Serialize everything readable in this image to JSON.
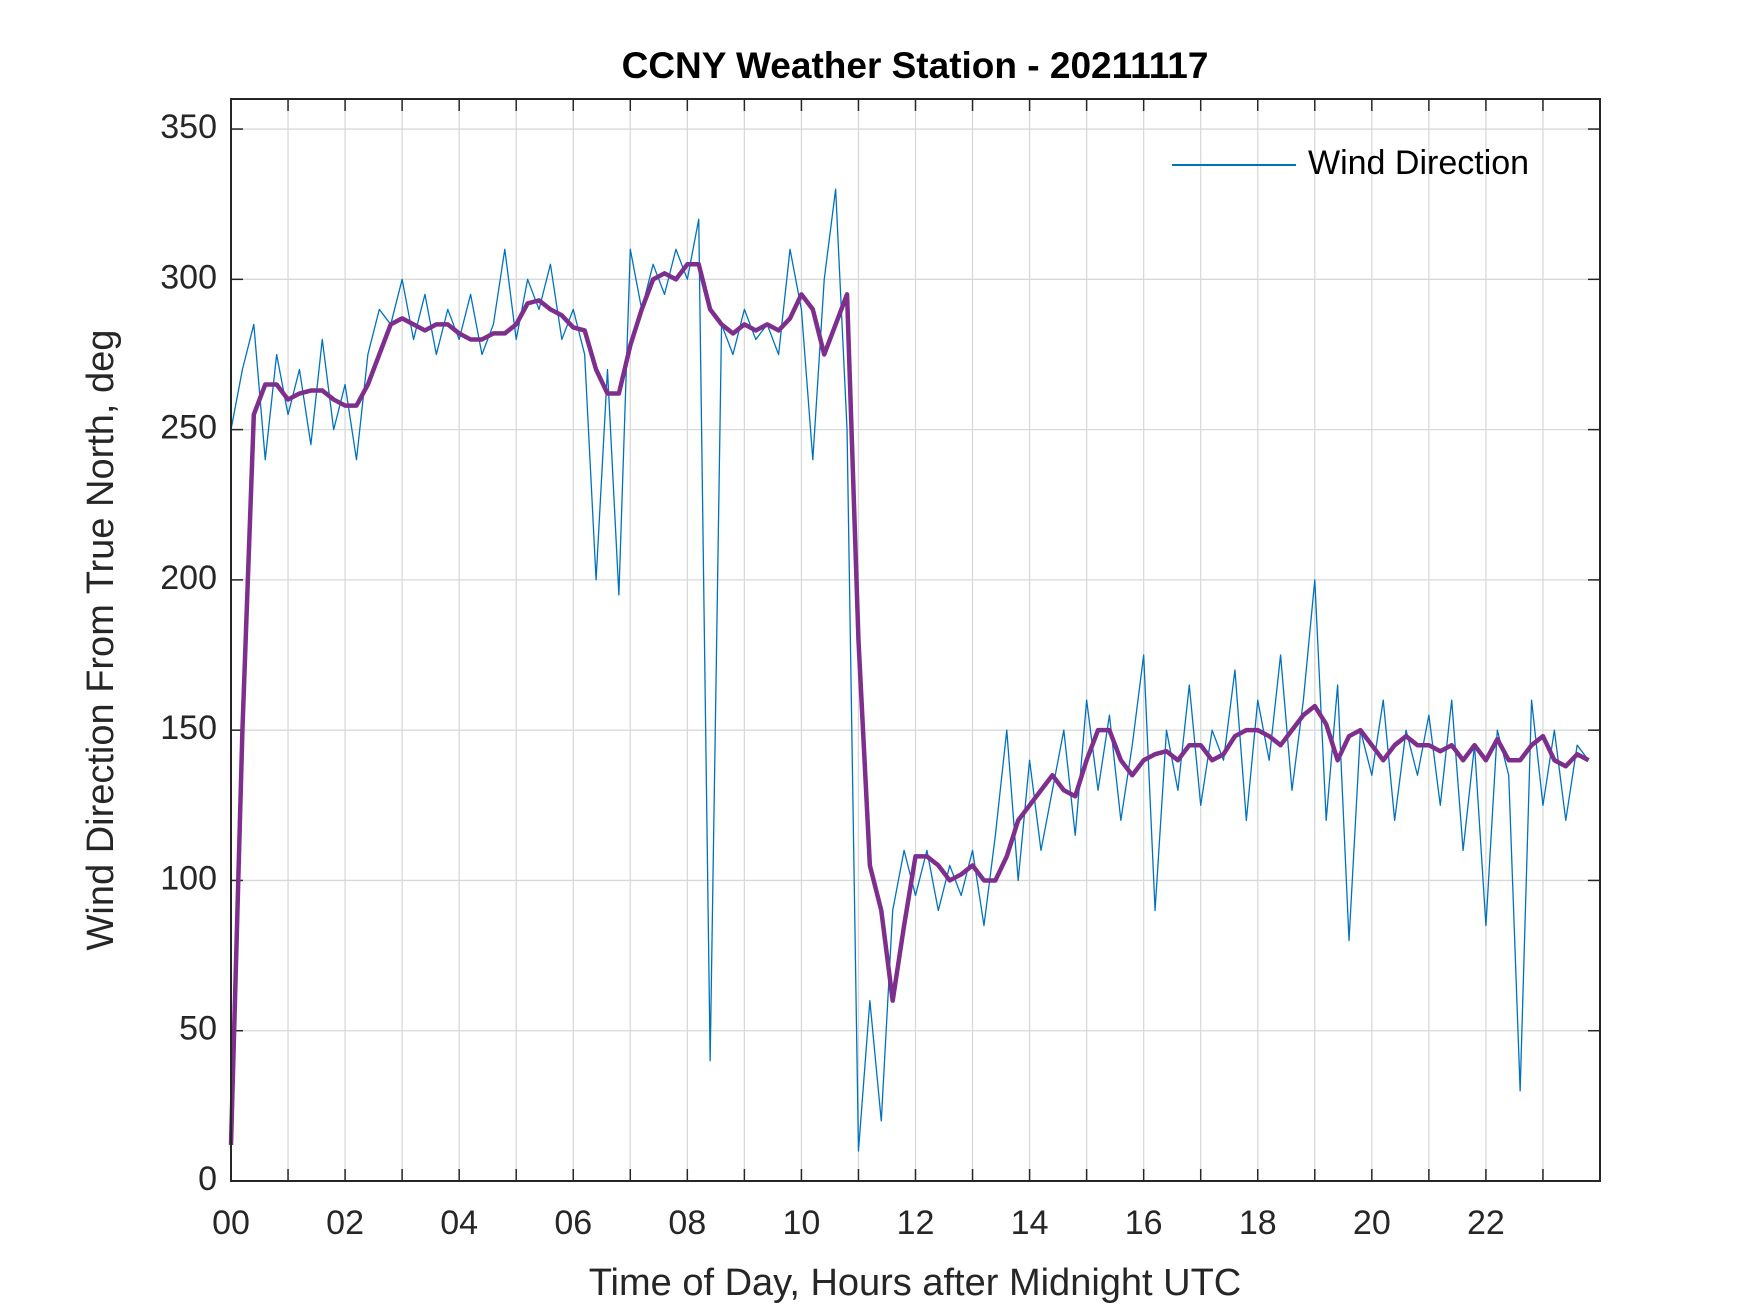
{
  "chart_data": {
    "type": "line",
    "title": "CCNY Weather Station - 20211117",
    "x_label": "Time of Day, Hours after Midnight UTC",
    "y_label": "Wind Direction From True North, deg",
    "x": [
      0,
      0.2,
      0.4,
      0.6,
      0.8,
      1,
      1.2,
      1.4,
      1.6,
      1.8,
      2,
      2.2,
      2.4,
      2.6,
      2.8,
      3,
      3.2,
      3.4,
      3.6,
      3.8,
      4,
      4.2,
      4.4,
      4.6,
      4.8,
      5,
      5.2,
      5.4,
      5.6,
      5.8,
      6,
      6.2,
      6.4,
      6.6,
      6.8,
      7,
      7.2,
      7.4,
      7.6,
      7.8,
      8,
      8.2,
      8.4,
      8.6,
      8.8,
      9,
      9.2,
      9.4,
      9.6,
      9.8,
      10,
      10.2,
      10.4,
      10.6,
      10.8,
      11,
      11.2,
      11.4,
      11.6,
      11.8,
      12,
      12.2,
      12.4,
      12.6,
      12.8,
      13,
      13.2,
      13.4,
      13.6,
      13.8,
      14,
      14.2,
      14.4,
      14.6,
      14.8,
      15,
      15.2,
      15.4,
      15.6,
      15.8,
      16,
      16.2,
      16.4,
      16.6,
      16.8,
      17,
      17.2,
      17.4,
      17.6,
      17.8,
      18,
      18.2,
      18.4,
      18.6,
      18.8,
      19,
      19.2,
      19.4,
      19.6,
      19.8,
      20,
      20.2,
      20.4,
      20.6,
      20.8,
      21,
      21.2,
      21.4,
      21.6,
      21.8,
      22,
      22.2,
      22.4,
      22.6,
      22.8,
      23,
      23.2,
      23.4,
      23.6,
      23.8
    ],
    "series": [
      {
        "name": "Wind Direction",
        "color": "#0072bd",
        "width": 1.3,
        "values": [
          250,
          270,
          285,
          240,
          275,
          255,
          270,
          245,
          280,
          250,
          265,
          240,
          275,
          290,
          285,
          300,
          280,
          295,
          275,
          290,
          280,
          295,
          275,
          285,
          310,
          280,
          300,
          290,
          305,
          280,
          290,
          275,
          200,
          270,
          195,
          310,
          290,
          305,
          295,
          310,
          300,
          320,
          40,
          285,
          275,
          290,
          280,
          285,
          275,
          310,
          290,
          240,
          300,
          330,
          250,
          10,
          60,
          20,
          90,
          110,
          95,
          110,
          90,
          105,
          95,
          110,
          85,
          115,
          150,
          100,
          140,
          110,
          130,
          150,
          115,
          160,
          130,
          155,
          120,
          145,
          175,
          90,
          150,
          130,
          165,
          125,
          150,
          140,
          170,
          120,
          160,
          140,
          175,
          130,
          160,
          200,
          120,
          165,
          80,
          150,
          135,
          160,
          120,
          150,
          135,
          155,
          125,
          160,
          110,
          145,
          85,
          150,
          135,
          30,
          160,
          125,
          150,
          120,
          145,
          140
        ]
      },
      {
        "color": "#7e2f8e",
        "width": 4.5,
        "values": [
          12,
          150,
          255,
          265,
          265,
          260,
          262,
          263,
          263,
          260,
          258,
          258,
          265,
          275,
          285,
          287,
          285,
          283,
          285,
          285,
          282,
          280,
          280,
          282,
          282,
          285,
          292,
          293,
          290,
          288,
          284,
          283,
          270,
          262,
          262,
          278,
          290,
          300,
          302,
          300,
          305,
          305,
          290,
          285,
          282,
          285,
          283,
          285,
          283,
          287,
          295,
          290,
          275,
          285,
          295,
          180,
          105,
          90,
          60,
          85,
          108,
          108,
          105,
          100,
          102,
          105,
          100,
          100,
          108,
          120,
          125,
          130,
          135,
          130,
          128,
          140,
          150,
          150,
          140,
          135,
          140,
          142,
          143,
          140,
          145,
          145,
          140,
          142,
          148,
          150,
          150,
          148,
          145,
          150,
          155,
          158,
          152,
          140,
          148,
          150,
          145,
          140,
          145,
          148,
          145,
          145,
          143,
          145,
          140,
          145,
          140,
          147,
          140,
          140,
          145,
          148,
          140,
          138,
          142,
          140
        ]
      }
    ],
    "xlim": [
      0,
      24
    ],
    "xticks": [
      {
        "value": 0,
        "label": "00"
      },
      {
        "value": 2,
        "label": "02"
      },
      {
        "value": 4,
        "label": "04"
      },
      {
        "value": 6,
        "label": "06"
      },
      {
        "value": 8,
        "label": "08"
      },
      10,
      12,
      14,
      16,
      18,
      20,
      22
    ],
    "xminorticks": [
      1,
      3,
      5,
      7,
      9,
      11,
      13,
      15,
      17,
      19,
      21,
      23
    ],
    "ylim": [
      0,
      360
    ],
    "yticks": [
      0,
      50,
      100,
      150,
      200,
      250,
      300,
      350
    ],
    "grid": true,
    "legend": "top-right"
  }
}
